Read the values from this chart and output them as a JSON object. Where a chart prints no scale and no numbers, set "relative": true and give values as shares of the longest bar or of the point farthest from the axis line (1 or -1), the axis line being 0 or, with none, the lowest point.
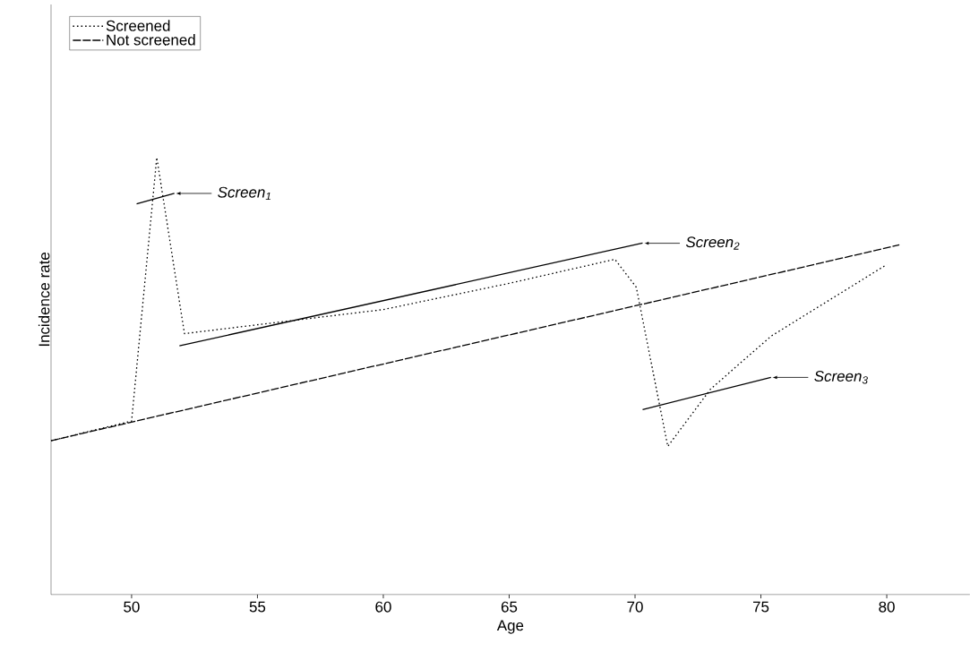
{
  "chart_data": {
    "type": "line",
    "relative": true,
    "xlabel": "Age",
    "ylabel": "Incidence rate",
    "xlim": [
      46.8,
      83.3
    ],
    "xticks": [
      50,
      55,
      60,
      65,
      70,
      75,
      80
    ],
    "legend": "top left",
    "grid": false,
    "series": [
      {
        "name": "Screened",
        "color": "#000000",
        "line_style": "dotted",
        "x": [
          46.8,
          50,
          51,
          52.1,
          60,
          65,
          69.2,
          70.05,
          71.3,
          73,
          75.4,
          80
        ],
        "values": [
          0.352,
          0.397,
          1.0,
          0.597,
          0.652,
          0.712,
          0.767,
          0.703,
          0.339,
          0.47,
          0.591,
          0.755
        ]
      },
      {
        "name": "Not screened",
        "color": "#000000",
        "line_style": "dashed",
        "x": [
          46.8,
          80.5
        ],
        "values": [
          0.352,
          0.8
        ]
      },
      {
        "color": "#000000",
        "line_style": "solid",
        "x": [
          50.2,
          51.7
        ],
        "values": [
          0.894,
          0.918
        ]
      },
      {
        "color": "#000000",
        "line_style": "solid",
        "x": [
          51.9,
          70.3
        ],
        "values": [
          0.569,
          0.804
        ]
      },
      {
        "color": "#000000",
        "line_style": "solid",
        "x": [
          70.3,
          75.4
        ],
        "values": [
          0.423,
          0.497
        ]
      }
    ],
    "annotations": [
      {
        "text": "Screen$_{1}$",
        "x": 51.7,
        "y": 0.918
      },
      {
        "text": "Screen$_{2}$",
        "x": 70.3,
        "y": 0.804
      },
      {
        "text": "Screen$_{3}$",
        "x": 75.4,
        "y": 0.497
      }
    ]
  }
}
